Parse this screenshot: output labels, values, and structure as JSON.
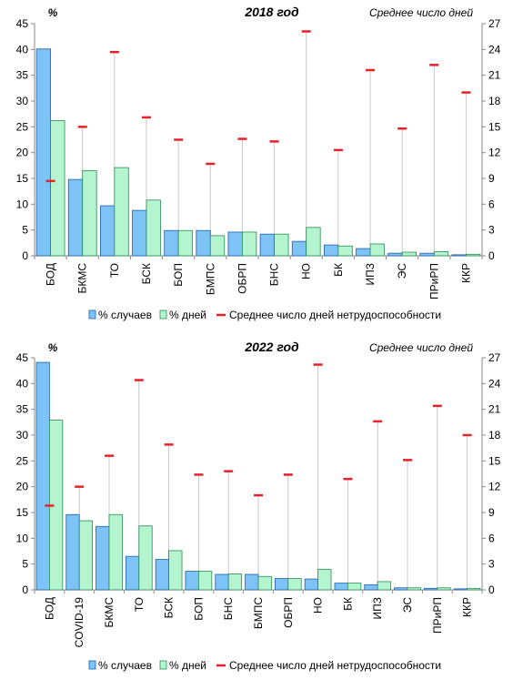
{
  "colors": {
    "cases_fill": "#7ec3f5",
    "cases_stroke": "#1f5fa8",
    "days_fill": "#b4f5cf",
    "days_stroke": "#2a8a52",
    "avg_marker": "#e8202a",
    "drop_line": "#c8c8c8",
    "axis": "#888888",
    "text": "#000000"
  },
  "chart_data": [
    {
      "type": "bar",
      "title": "2018 год",
      "ylabel": "%",
      "y2label": "Среднее  число дней",
      "ylim": [
        0,
        45
      ],
      "yticks": [
        "0",
        "5",
        "10",
        "15",
        "20",
        "25",
        "30",
        "35",
        "40",
        "45"
      ],
      "y2lim": [
        0,
        27
      ],
      "y2ticks": [
        "0",
        "3",
        "6",
        "9",
        "12",
        "15",
        "18",
        "21",
        "24",
        "27"
      ],
      "categories": [
        "БОД",
        "БКМС",
        "ТО",
        "БСК",
        "БОП",
        "БМПС",
        "ОБРП",
        "БНС",
        "НО",
        "БК",
        "ИПЗ",
        "ЭС",
        "ПРиРП",
        "ККР"
      ],
      "series": [
        {
          "name": "% случаев",
          "kind": "bar",
          "axis": "left",
          "values": [
            40.1,
            14.8,
            9.7,
            8.8,
            4.9,
            4.9,
            4.6,
            4.2,
            2.8,
            2.1,
            1.4,
            0.5,
            0.5,
            0.2
          ]
        },
        {
          "name": "% дней",
          "kind": "bar",
          "axis": "left",
          "values": [
            26.2,
            16.5,
            17.1,
            10.8,
            4.9,
            3.9,
            4.6,
            4.2,
            5.5,
            1.9,
            2.3,
            0.7,
            0.8,
            0.3
          ]
        },
        {
          "name": "Среднее число дней нетрудоспособности",
          "kind": "marker",
          "axis": "right",
          "values": [
            8.7,
            15.0,
            23.7,
            16.1,
            13.5,
            10.7,
            13.6,
            13.3,
            26.1,
            12.3,
            21.6,
            14.8,
            22.2,
            19.0
          ]
        }
      ]
    },
    {
      "type": "bar",
      "title": "2022 год",
      "ylabel": "%",
      "y2label": "Среднее  число дней",
      "ylim": [
        0,
        45
      ],
      "yticks": [
        "0",
        "5",
        "10",
        "15",
        "20",
        "25",
        "30",
        "35",
        "40",
        "45"
      ],
      "y2lim": [
        0,
        27
      ],
      "y2ticks": [
        "0",
        "3",
        "6",
        "9",
        "12",
        "15",
        "18",
        "21",
        "24",
        "27"
      ],
      "categories": [
        "БОД",
        "COVID-19",
        "БКМС",
        "ТО",
        "БСК",
        "БОП",
        "БНС",
        "БМПС",
        "ОБРП",
        "НО",
        "БК",
        "ИПЗ",
        "ЭС",
        "ПРиРП",
        "ККР"
      ],
      "series": [
        {
          "name": "% случаев",
          "kind": "bar",
          "axis": "left",
          "values": [
            44.1,
            14.6,
            12.3,
            6.5,
            5.9,
            3.6,
            3.0,
            3.0,
            2.2,
            2.1,
            1.3,
            1.0,
            0.4,
            0.3,
            0.2
          ]
        },
        {
          "name": "% дней",
          "kind": "bar",
          "axis": "left",
          "values": [
            32.9,
            13.4,
            14.6,
            12.4,
            7.6,
            3.6,
            3.1,
            2.6,
            2.2,
            4.0,
            1.3,
            1.6,
            0.4,
            0.4,
            0.3
          ]
        },
        {
          "name": "Среднее число дней нетрудоспособности",
          "kind": "marker",
          "axis": "right",
          "values": [
            9.8,
            12.0,
            15.6,
            24.4,
            16.9,
            13.4,
            13.8,
            11.0,
            13.4,
            26.2,
            12.9,
            19.6,
            15.1,
            21.4,
            18.0
          ]
        }
      ]
    }
  ]
}
